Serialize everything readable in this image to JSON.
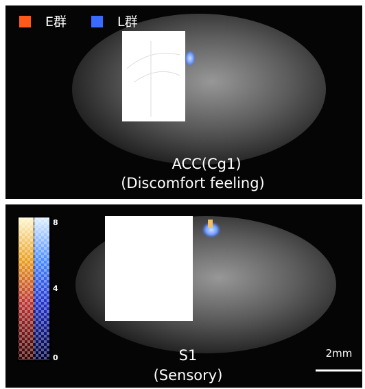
{
  "legend": [
    {
      "label": "E群",
      "color": "#ff5a1a"
    },
    {
      "label": "L群",
      "color": "#3a6bff"
    }
  ],
  "panels": [
    {
      "label": "ACC(Cg1)",
      "sublabel": "(Discomfort feeling)"
    },
    {
      "label": "S1",
      "sublabel": "(Sensory)"
    }
  ],
  "colorbar": {
    "ticks": [
      "8",
      "4",
      "0"
    ]
  },
  "scale_bar": {
    "label": "2mm"
  }
}
